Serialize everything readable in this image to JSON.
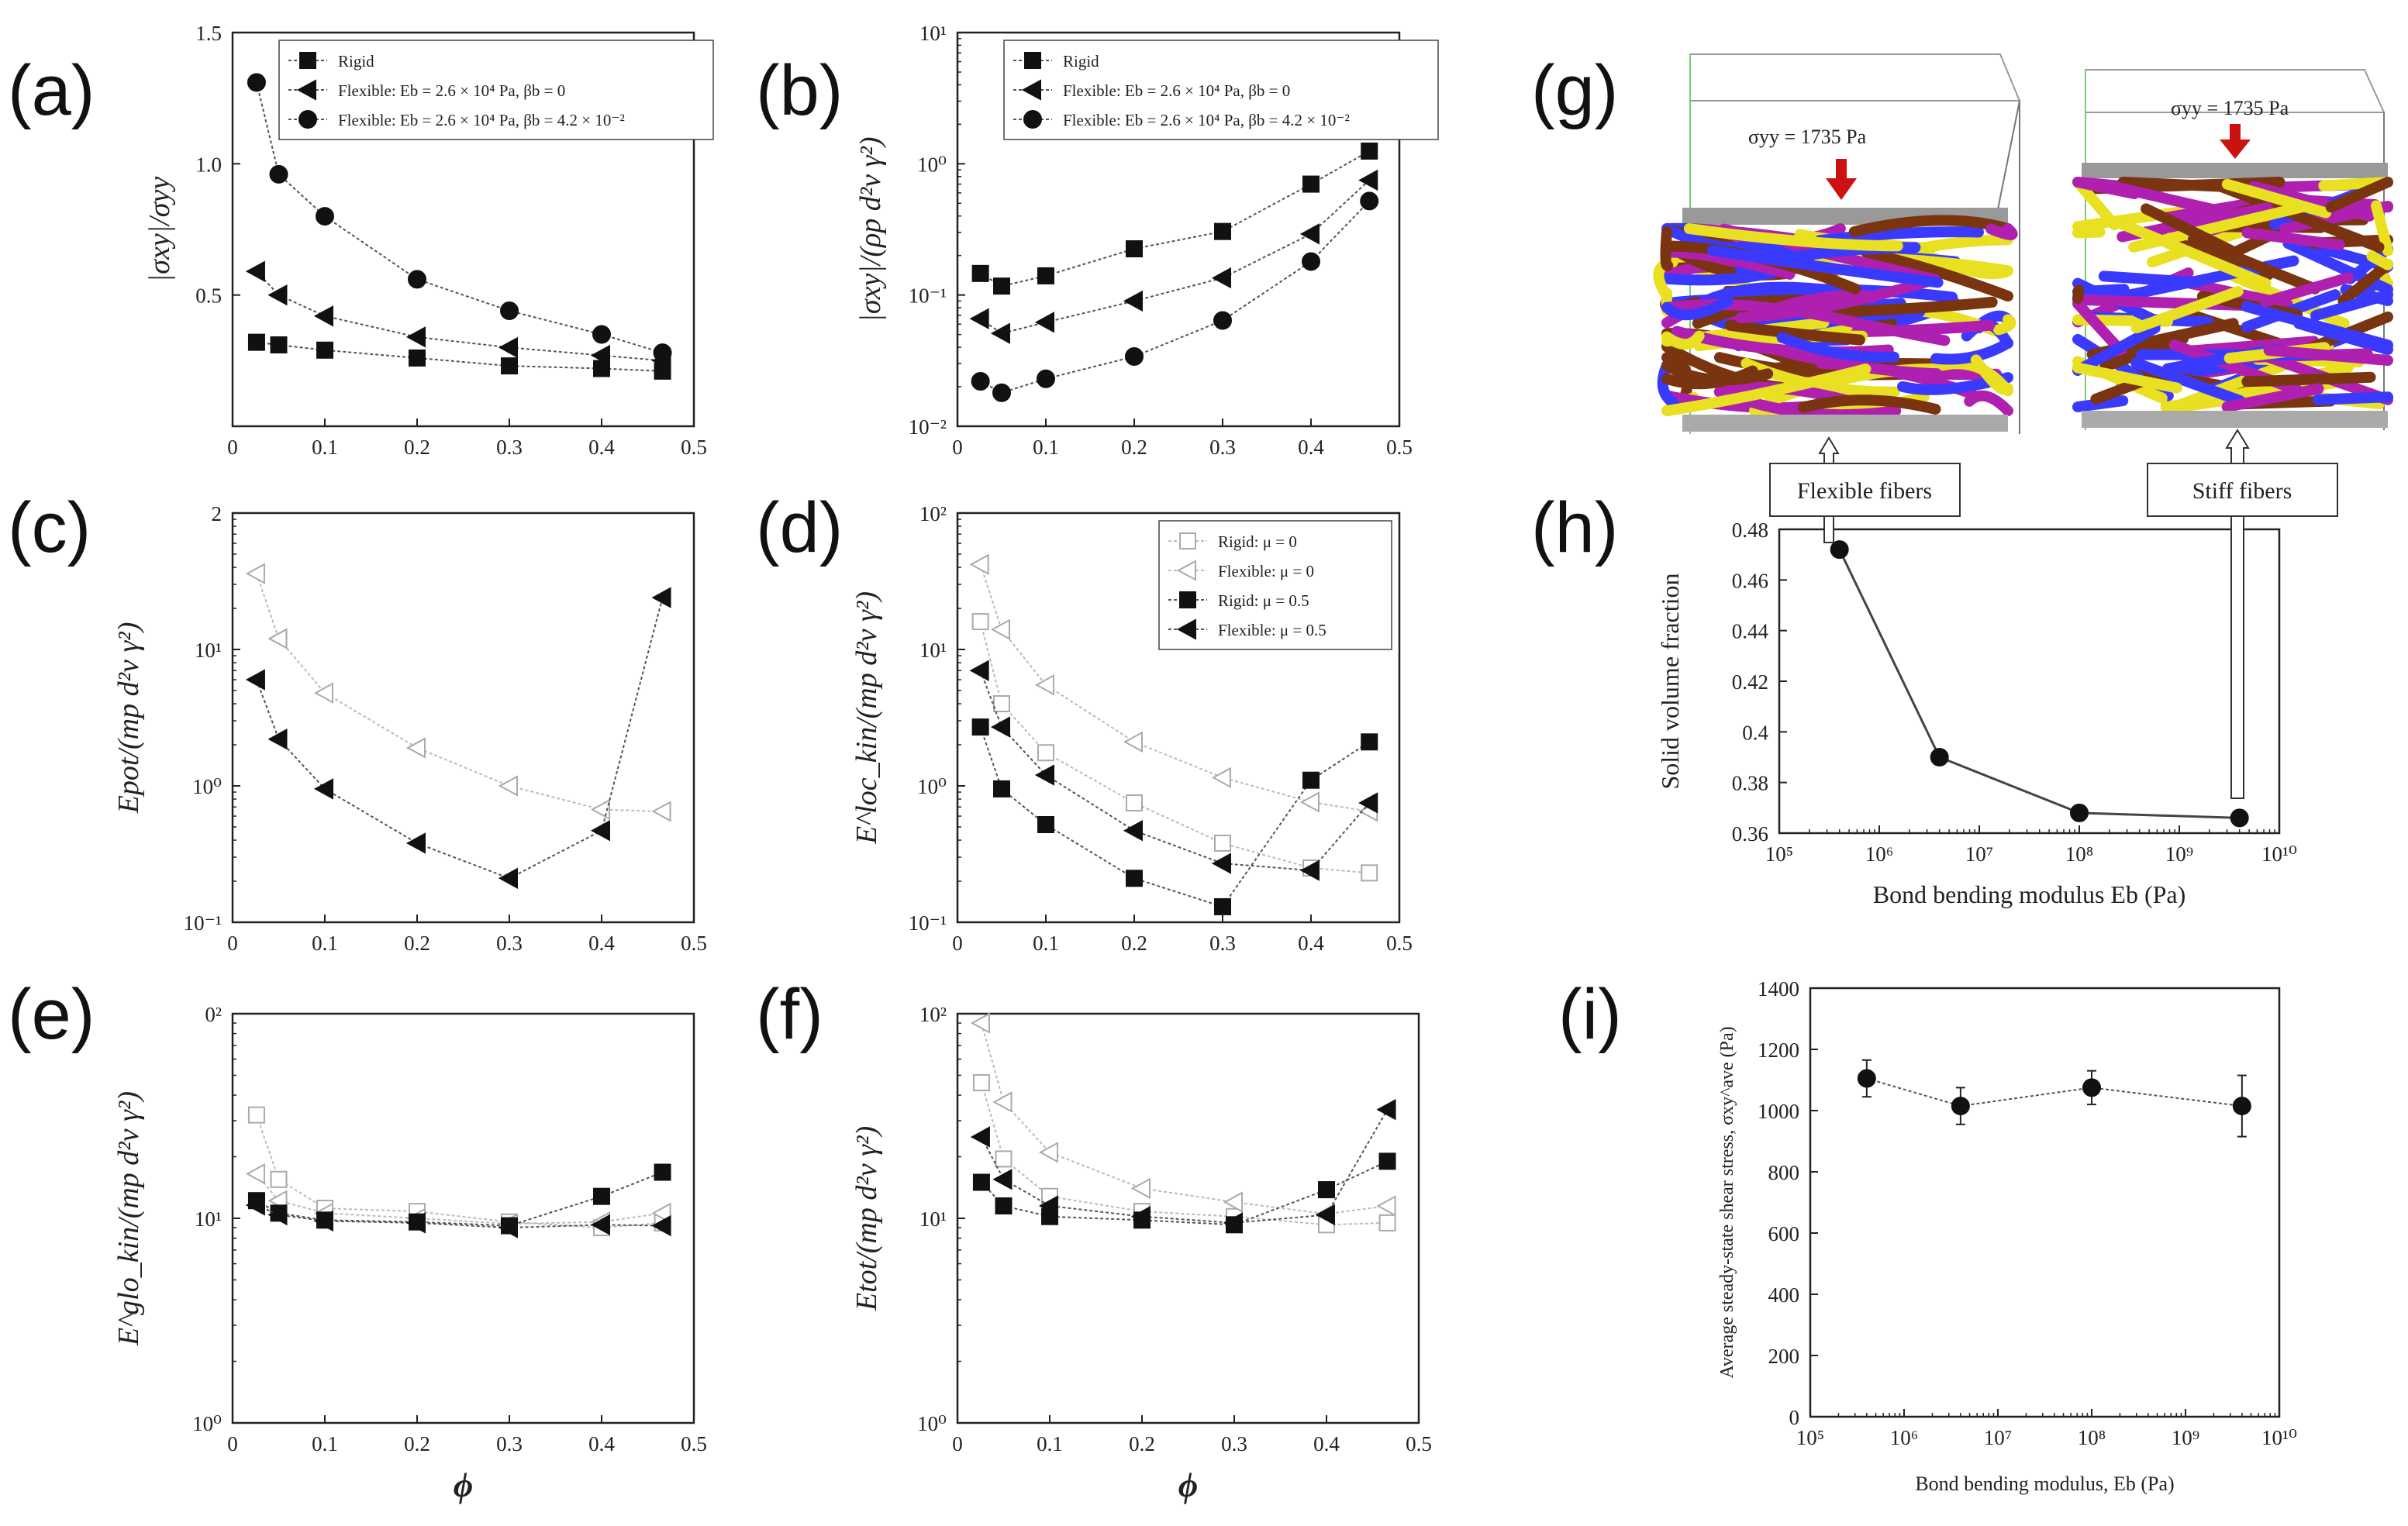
{
  "panel_labels": {
    "a": "(a)",
    "b": "(b)",
    "c": "(c)",
    "d": "(d)",
    "e": "(e)",
    "f": "(f)",
    "g": "(g)",
    "h": "(h)",
    "i": "(i)"
  },
  "colors": {
    "axis": "#222222",
    "dotted": "#555555",
    "hollow_series": "#aaaaaa",
    "red_arrow": "#cc1111",
    "fiber_purple": "#b020b0",
    "fiber_blue": "#3a3aff",
    "fiber_yellow": "#e8e020",
    "fiber_brown": "#7a3410"
  },
  "chart_data": [
    {
      "panel": "a",
      "type": "line",
      "ylabel": "|σxy|/σyy",
      "xlabel": "",
      "xlim": [
        0,
        0.5
      ],
      "ylim": [
        0,
        1.5
      ],
      "yscale": "linear",
      "xticks": [
        "0",
        "0.1",
        "0.2",
        "0.3",
        "0.4",
        "0.5"
      ],
      "yticks": [
        "0.5",
        "1.0",
        "1.5"
      ],
      "legend_position": "top-right",
      "series": [
        {
          "name": "Rigid",
          "marker": "square",
          "x": [
            0.026,
            0.05,
            0.1,
            0.2,
            0.3,
            0.4,
            0.466
          ],
          "y": [
            0.32,
            0.31,
            0.29,
            0.26,
            0.23,
            0.22,
            0.21
          ]
        },
        {
          "name": "Flexible: Eb = 2.6 × 10⁴ Pa, βb = 0",
          "marker": "triangle-left",
          "x": [
            0.026,
            0.05,
            0.1,
            0.2,
            0.3,
            0.4,
            0.466
          ],
          "y": [
            0.59,
            0.5,
            0.42,
            0.34,
            0.3,
            0.27,
            0.25
          ]
        },
        {
          "name": "Flexible: Eb = 2.6 × 10⁴ Pa, βb = 4.2 × 10⁻²",
          "marker": "circle",
          "x": [
            0.026,
            0.05,
            0.1,
            0.2,
            0.3,
            0.4,
            0.466
          ],
          "y": [
            1.31,
            0.96,
            0.8,
            0.56,
            0.44,
            0.35,
            0.28
          ]
        }
      ]
    },
    {
      "panel": "b",
      "type": "line",
      "ylabel": "|σxy|/(ρp d²v γ²)",
      "xlabel": "",
      "xlim": [
        0,
        0.5
      ],
      "ylim": [
        0.01,
        10
      ],
      "yscale": "log",
      "xticks": [
        "0",
        "0.1",
        "0.2",
        "0.3",
        "0.4",
        "0.5"
      ],
      "yticks": [
        "10⁻²",
        "10⁻¹",
        "10⁰",
        "10¹"
      ],
      "legend_position": "top-right",
      "series": [
        {
          "name": "Rigid",
          "marker": "square",
          "x": [
            0.026,
            0.05,
            0.1,
            0.2,
            0.3,
            0.4,
            0.466
          ],
          "y": [
            0.146,
            0.117,
            0.14,
            0.225,
            0.305,
            0.7,
            1.25
          ]
        },
        {
          "name": "Flexible: Eb = 2.6 × 10⁴ Pa, βb = 0",
          "marker": "triangle-left",
          "x": [
            0.026,
            0.05,
            0.1,
            0.2,
            0.3,
            0.4,
            0.466
          ],
          "y": [
            0.066,
            0.051,
            0.062,
            0.09,
            0.135,
            0.292,
            0.75
          ]
        },
        {
          "name": "Flexible: Eb = 2.6 × 10⁴ Pa, βb = 4.2 × 10⁻²",
          "marker": "circle",
          "x": [
            0.026,
            0.05,
            0.1,
            0.2,
            0.3,
            0.4,
            0.466
          ],
          "y": [
            0.022,
            0.018,
            0.023,
            0.034,
            0.064,
            0.18,
            0.52
          ]
        }
      ]
    },
    {
      "panel": "c",
      "type": "line",
      "ylabel": "Epot/(mp d²v γ²)",
      "xlabel": "",
      "xlim": [
        0,
        0.5
      ],
      "ylim": [
        0.1,
        100
      ],
      "yscale": "log",
      "xticks": [
        "0",
        "0.1",
        "0.2",
        "0.3",
        "0.4",
        "0.5"
      ],
      "yticks": [
        "10⁻¹",
        "10⁰",
        "10¹",
        "2"
      ],
      "series": [
        {
          "name": "Flexible: μ = 0",
          "marker": "triangle-left-open",
          "x": [
            0.026,
            0.05,
            0.1,
            0.2,
            0.3,
            0.4,
            0.466
          ],
          "y": [
            36,
            12,
            4.8,
            1.9,
            1.0,
            0.67,
            0.65
          ]
        },
        {
          "name": "Flexible: μ = 0.5",
          "marker": "triangle-left",
          "x": [
            0.026,
            0.05,
            0.1,
            0.2,
            0.3,
            0.4,
            0.466
          ],
          "y": [
            6.0,
            2.2,
            0.95,
            0.38,
            0.21,
            0.47,
            24
          ]
        }
      ]
    },
    {
      "panel": "d",
      "type": "line",
      "ylabel": "E^loc_kin/(mp d²v γ²)",
      "xlabel": "",
      "xlim": [
        0,
        0.5
      ],
      "ylim": [
        0.1,
        100
      ],
      "yscale": "log",
      "xticks": [
        "0",
        "0.1",
        "0.2",
        "0.3",
        "0.4",
        "0.5"
      ],
      "yticks": [
        "10⁻¹",
        "10⁰",
        "10¹",
        "10²"
      ],
      "legend_position": "top-right",
      "series": [
        {
          "name": "Rigid: μ = 0",
          "marker": "square-open",
          "x": [
            0.026,
            0.05,
            0.1,
            0.2,
            0.3,
            0.4,
            0.466
          ],
          "y": [
            16,
            4.0,
            1.75,
            0.75,
            0.38,
            0.25,
            0.23
          ]
        },
        {
          "name": "Flexible: μ = 0",
          "marker": "triangle-left-open",
          "x": [
            0.026,
            0.05,
            0.1,
            0.2,
            0.3,
            0.4,
            0.466
          ],
          "y": [
            42,
            14,
            5.5,
            2.1,
            1.15,
            0.76,
            0.65
          ]
        },
        {
          "name": "Rigid: μ = 0.5",
          "marker": "square",
          "x": [
            0.026,
            0.05,
            0.1,
            0.2,
            0.3,
            0.4,
            0.466
          ],
          "y": [
            2.7,
            0.95,
            0.52,
            0.21,
            0.13,
            1.1,
            2.1
          ]
        },
        {
          "name": "Flexible: μ = 0.5",
          "marker": "triangle-left",
          "x": [
            0.026,
            0.05,
            0.1,
            0.2,
            0.3,
            0.4,
            0.466
          ],
          "y": [
            7.0,
            2.7,
            1.2,
            0.47,
            0.27,
            0.24,
            0.75
          ]
        }
      ]
    },
    {
      "panel": "e",
      "type": "line",
      "ylabel": "E^glo_kin/(mp d²v γ²)",
      "xlabel": "ϕ",
      "xlim": [
        0,
        0.5
      ],
      "ylim": [
        1,
        100
      ],
      "yscale": "log",
      "xticks": [
        "0",
        "0.1",
        "0.2",
        "0.3",
        "0.4",
        "0.5"
      ],
      "yticks": [
        "10⁰",
        "10¹",
        "0²"
      ],
      "series": [
        {
          "name": "Rigid: μ = 0",
          "marker": "square-open",
          "x": [
            0.026,
            0.05,
            0.1,
            0.2,
            0.3,
            0.4,
            0.466
          ],
          "y": [
            32,
            15.5,
            11.2,
            10.8,
            9.6,
            9.0,
            9.5
          ]
        },
        {
          "name": "Flexible: μ = 0",
          "marker": "triangle-left-open",
          "x": [
            0.026,
            0.05,
            0.1,
            0.2,
            0.3,
            0.4,
            0.466
          ],
          "y": [
            16.5,
            12.2,
            10.6,
            10.0,
            9.4,
            9.6,
            10.6
          ]
        },
        {
          "name": "Rigid: μ = 0.5",
          "marker": "square",
          "x": [
            0.026,
            0.05,
            0.1,
            0.2,
            0.3,
            0.4,
            0.466
          ],
          "y": [
            12.2,
            10.6,
            9.8,
            9.6,
            9.2,
            12.8,
            16.8
          ]
        },
        {
          "name": "Flexible: μ = 0.5",
          "marker": "triangle-left",
          "x": [
            0.026,
            0.05,
            0.1,
            0.2,
            0.3,
            0.4,
            0.466
          ],
          "y": [
            11.6,
            10.4,
            9.7,
            9.5,
            9.0,
            9.3,
            9.2
          ]
        }
      ]
    },
    {
      "panel": "f",
      "type": "line",
      "ylabel": "Etot/(mp d²v γ²)",
      "xlabel": "ϕ",
      "xlim": [
        0,
        0.5
      ],
      "ylim": [
        1,
        100
      ],
      "yscale": "log",
      "xticks": [
        "0",
        "0.1",
        "0.2",
        "0.3",
        "0.4",
        "0.5"
      ],
      "yticks": [
        "10⁰",
        "10¹",
        "10²"
      ],
      "series": [
        {
          "name": "Rigid: μ = 0",
          "marker": "square-open",
          "x": [
            0.026,
            0.05,
            0.1,
            0.2,
            0.3,
            0.4,
            0.466
          ],
          "y": [
            46,
            19.5,
            12.8,
            10.8,
            10.2,
            9.3,
            9.5
          ]
        },
        {
          "name": "Flexible: μ = 0",
          "marker": "triangle-left-open",
          "x": [
            0.026,
            0.05,
            0.1,
            0.2,
            0.3,
            0.4,
            0.466
          ],
          "y": [
            90,
            37,
            21,
            14,
            12,
            10.5,
            11.5
          ]
        },
        {
          "name": "Rigid: μ = 0.5",
          "marker": "square",
          "x": [
            0.026,
            0.05,
            0.1,
            0.2,
            0.3,
            0.4,
            0.466
          ],
          "y": [
            15,
            11.5,
            10.2,
            9.8,
            9.3,
            13.8,
            19
          ]
        },
        {
          "name": "Flexible: μ = 0.5",
          "marker": "triangle-left",
          "x": [
            0.026,
            0.05,
            0.1,
            0.2,
            0.3,
            0.4,
            0.466
          ],
          "y": [
            25,
            15.5,
            11.5,
            10.2,
            9.5,
            10.4,
            34
          ]
        }
      ]
    },
    {
      "panel": "h",
      "type": "line",
      "ylabel": "Solid volume fraction",
      "xlabel": "Bond bending modulus Eb (Pa)",
      "xlim": [
        100000,
        10000000000
      ],
      "xscale": "log",
      "ylim": [
        0.36,
        0.48
      ],
      "xticks": [
        "10⁵",
        "10⁶",
        "10⁷",
        "10⁸",
        "10⁹",
        "10¹⁰"
      ],
      "yticks": [
        "0.36",
        "0.38",
        "0.4",
        "0.42",
        "0.44",
        "0.46",
        "0.48"
      ],
      "series": [
        {
          "name": "",
          "marker": "circle",
          "x": [
            400000,
            4000000,
            100000000,
            4000000000
          ],
          "y": [
            0.472,
            0.39,
            0.368,
            0.366
          ],
          "err": [
            0,
            0.002,
            0.003,
            0.003
          ]
        }
      ]
    },
    {
      "panel": "i",
      "type": "scatter",
      "ylabel": "Average steady-state shear stress, σxy^ave (Pa)",
      "xlabel": "Bond bending modulus, Eb (Pa)",
      "xlim": [
        100000,
        10000000000
      ],
      "xscale": "log",
      "ylim": [
        0,
        1400
      ],
      "xticks": [
        "10⁵",
        "10⁶",
        "10⁷",
        "10⁸",
        "10⁹",
        "10¹⁰"
      ],
      "yticks": [
        "0",
        "200",
        "400",
        "600",
        "800",
        "1000",
        "1200",
        "1400"
      ],
      "series": [
        {
          "name": "",
          "marker": "circle",
          "x": [
            400000,
            4000000,
            100000000,
            4000000000
          ],
          "y": [
            1105,
            1015,
            1075,
            1015
          ],
          "err": [
            60,
            60,
            55,
            100
          ]
        }
      ]
    }
  ],
  "panel_g": {
    "stress_left": "σyy = 1735 Pa",
    "stress_right": "σyy = 1735 Pa",
    "label_flexible": "Flexible fibers",
    "label_stiff": "Stiff fibers"
  }
}
